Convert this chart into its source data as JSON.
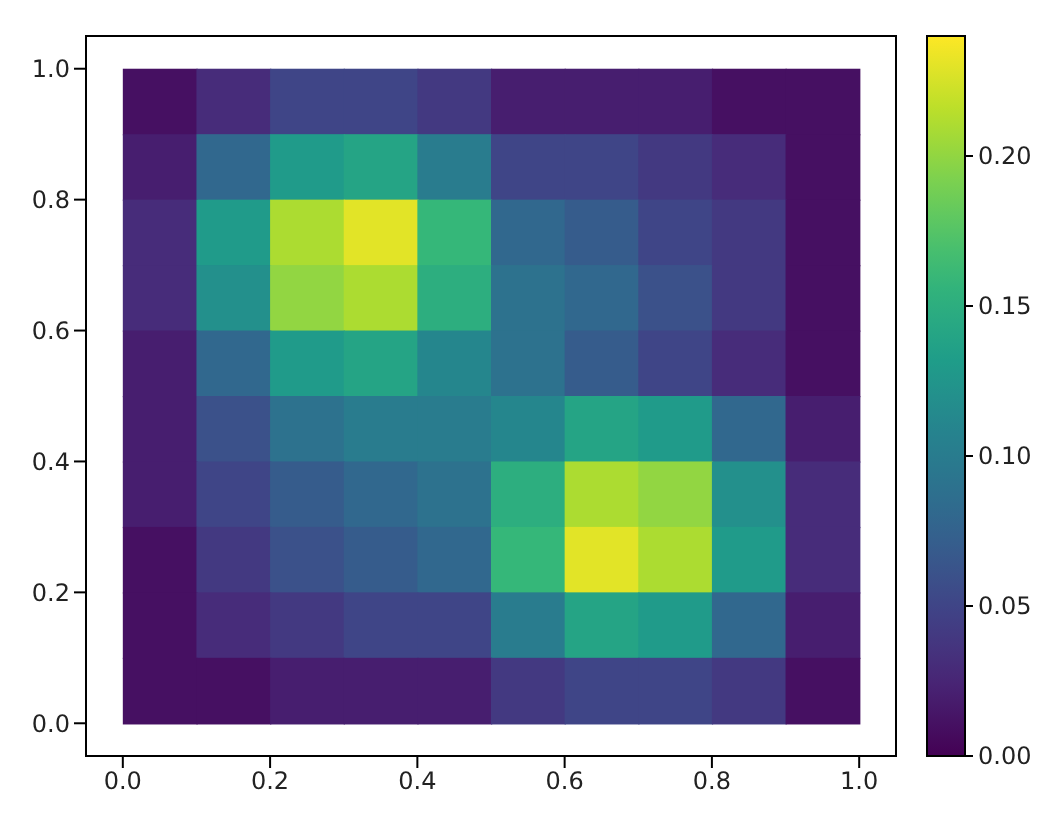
{
  "chart_data": {
    "type": "scatter",
    "marker": "square",
    "x": [
      0.05,
      0.15,
      0.25,
      0.35,
      0.45,
      0.55,
      0.65,
      0.75,
      0.85,
      0.95,
      0.05,
      0.15,
      0.25,
      0.35,
      0.45,
      0.55,
      0.65,
      0.75,
      0.85,
      0.95,
      0.05,
      0.15,
      0.25,
      0.35,
      0.45,
      0.55,
      0.65,
      0.75,
      0.85,
      0.95,
      0.05,
      0.15,
      0.25,
      0.35,
      0.45,
      0.55,
      0.65,
      0.75,
      0.85,
      0.95,
      0.05,
      0.15,
      0.25,
      0.35,
      0.45,
      0.55,
      0.65,
      0.75,
      0.85,
      0.95,
      0.05,
      0.15,
      0.25,
      0.35,
      0.45,
      0.55,
      0.65,
      0.75,
      0.85,
      0.95,
      0.05,
      0.15,
      0.25,
      0.35,
      0.45,
      0.55,
      0.65,
      0.75,
      0.85,
      0.95,
      0.05,
      0.15,
      0.25,
      0.35,
      0.45,
      0.55,
      0.65,
      0.75,
      0.85,
      0.95,
      0.05,
      0.15,
      0.25,
      0.35,
      0.45,
      0.55,
      0.65,
      0.75,
      0.85,
      0.95,
      0.05,
      0.15,
      0.25,
      0.35,
      0.45,
      0.55,
      0.65,
      0.75,
      0.85,
      0.95
    ],
    "values": [
      0.95,
      0.95,
      0.95,
      0.95,
      0.95,
      0.95,
      0.95,
      0.95,
      0.95,
      0.95,
      0.85,
      0.85,
      0.85,
      0.85,
      0.85,
      0.85,
      0.85,
      0.85,
      0.85,
      0.85,
      0.75,
      0.75,
      0.75,
      0.75,
      0.75,
      0.75,
      0.75,
      0.75,
      0.75,
      0.75,
      0.65,
      0.65,
      0.65,
      0.65,
      0.65,
      0.65,
      0.65,
      0.65,
      0.65,
      0.65,
      0.55,
      0.55,
      0.55,
      0.55,
      0.55,
      0.55,
      0.55,
      0.55,
      0.55,
      0.55,
      0.45,
      0.45,
      0.45,
      0.45,
      0.45,
      0.45,
      0.45,
      0.45,
      0.45,
      0.45,
      0.35,
      0.35,
      0.35,
      0.35,
      0.35,
      0.35,
      0.35,
      0.35,
      0.35,
      0.35,
      0.25,
      0.25,
      0.25,
      0.25,
      0.25,
      0.25,
      0.25,
      0.25,
      0.25,
      0.25,
      0.15,
      0.15,
      0.15,
      0.15,
      0.15,
      0.15,
      0.15,
      0.15,
      0.15,
      0.15,
      0.05,
      0.05,
      0.05,
      0.05,
      0.05,
      0.05,
      0.05,
      0.05,
      0.05,
      0.05
    ],
    "cvalues": [
      0.01,
      0.03,
      0.05,
      0.05,
      0.04,
      0.02,
      0.02,
      0.02,
      0.01,
      0.01,
      0.02,
      0.08,
      0.13,
      0.14,
      0.1,
      0.05,
      0.05,
      0.04,
      0.03,
      0.01,
      0.03,
      0.13,
      0.21,
      0.23,
      0.16,
      0.08,
      0.07,
      0.05,
      0.04,
      0.01,
      0.03,
      0.12,
      0.2,
      0.21,
      0.15,
      0.09,
      0.08,
      0.06,
      0.04,
      0.01,
      0.02,
      0.08,
      0.13,
      0.14,
      0.11,
      0.09,
      0.07,
      0.05,
      0.03,
      0.01,
      0.02,
      0.06,
      0.09,
      0.1,
      0.1,
      0.11,
      0.14,
      0.13,
      0.08,
      0.02,
      0.02,
      0.05,
      0.07,
      0.08,
      0.09,
      0.15,
      0.21,
      0.2,
      0.12,
      0.03,
      0.01,
      0.04,
      0.06,
      0.07,
      0.08,
      0.16,
      0.23,
      0.21,
      0.13,
      0.03,
      0.01,
      0.03,
      0.04,
      0.05,
      0.05,
      0.1,
      0.14,
      0.13,
      0.08,
      0.02,
      0.01,
      0.01,
      0.02,
      0.02,
      0.02,
      0.04,
      0.05,
      0.05,
      0.04,
      0.01
    ],
    "xlim": [
      -0.05,
      1.05
    ],
    "ylim": [
      -0.05,
      1.05
    ],
    "xticks": [
      {
        "value": 0,
        "label": "0.0"
      },
      {
        "value": 0.2,
        "label": "0.2"
      },
      {
        "value": 0.4,
        "label": "0.4"
      },
      {
        "value": 0.6,
        "label": "0.6"
      },
      {
        "value": 0.8,
        "label": "0.8"
      },
      {
        "value": 1,
        "label": "1.0"
      }
    ],
    "yticks": [
      {
        "value": 0,
        "label": "0.0"
      },
      {
        "value": 0.2,
        "label": "0.2"
      },
      {
        "value": 0.4,
        "label": "0.4"
      },
      {
        "value": 0.6,
        "label": "0.6"
      },
      {
        "value": 0.8,
        "label": "0.8"
      },
      {
        "value": 1,
        "label": "1.0"
      }
    ],
    "clim": [
      0,
      0.24
    ],
    "cticks": [
      {
        "value": 0,
        "label": "0.00"
      },
      {
        "value": 0.05,
        "label": "0.05"
      },
      {
        "value": 0.1,
        "label": "0.10"
      },
      {
        "value": 0.15,
        "label": "0.15"
      },
      {
        "value": 0.2,
        "label": "0.20"
      }
    ]
  }
}
